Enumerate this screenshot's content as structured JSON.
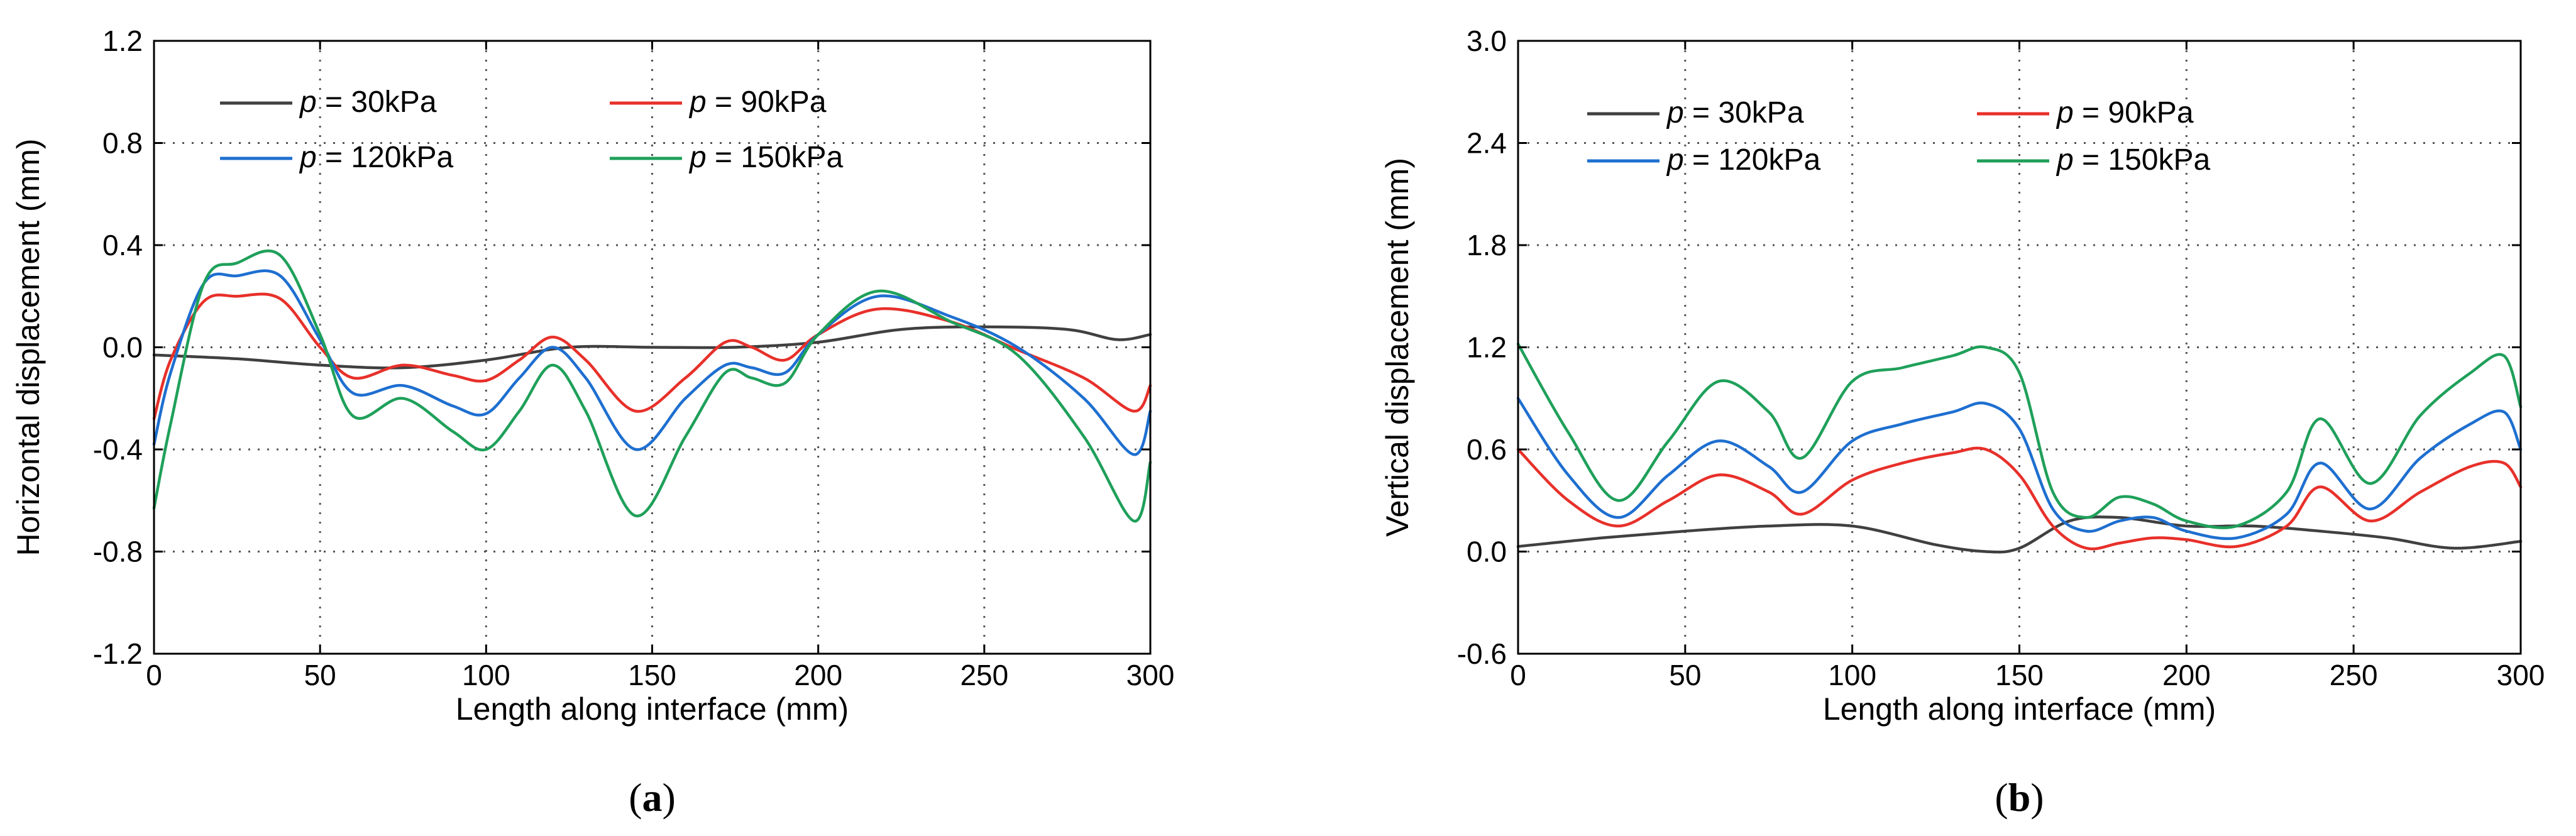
{
  "chart_data": [
    {
      "type": "line",
      "panel_label": "(a)",
      "xlabel": "Length along interface (mm)",
      "ylabel": "Horizontal  displacement (mm)",
      "xlim": [
        0,
        300
      ],
      "ylim": [
        -1.2,
        1.2
      ],
      "xticks": [
        0,
        50,
        100,
        150,
        200,
        250,
        300
      ],
      "yticks": [
        -1.2,
        -0.8,
        -0.4,
        0.0,
        0.4,
        0.8,
        1.2
      ],
      "ytick_labels": [
        "-1.2",
        "-0.8",
        "-0.4",
        "0.0",
        "0.4",
        "0.8",
        "1.2"
      ],
      "grid": true,
      "legend_position": "top-left",
      "series": [
        {
          "name": "p = 30kPa",
          "prefix": "p",
          "suffix": " = 30kPa",
          "color": "#404040",
          "x": [
            0,
            25,
            50,
            75,
            100,
            125,
            150,
            175,
            200,
            225,
            250,
            275,
            290,
            300
          ],
          "values": [
            -0.03,
            -0.045,
            -0.07,
            -0.08,
            -0.05,
            0.0,
            0.0,
            0.0,
            0.02,
            0.07,
            0.08,
            0.07,
            0.03,
            0.05
          ]
        },
        {
          "name": "p = 90kPa",
          "prefix": "p",
          "suffix": " = 90kPa",
          "color": "#e8302a",
          "x": [
            0,
            5,
            15,
            25,
            38,
            50,
            60,
            75,
            90,
            100,
            110,
            120,
            130,
            145,
            160,
            172,
            180,
            190,
            200,
            218,
            240,
            260,
            280,
            295,
            300
          ],
          "values": [
            -0.28,
            -0.05,
            0.18,
            0.2,
            0.19,
            0.0,
            -0.12,
            -0.07,
            -0.11,
            -0.13,
            -0.05,
            0.04,
            -0.05,
            -0.25,
            -0.12,
            0.02,
            0.0,
            -0.05,
            0.05,
            0.15,
            0.1,
            -0.01,
            -0.12,
            -0.25,
            -0.15
          ]
        },
        {
          "name": "p = 120kPa",
          "prefix": "p",
          "suffix": " = 120kPa",
          "color": "#1e6fd0",
          "x": [
            0,
            5,
            15,
            25,
            38,
            50,
            60,
            75,
            90,
            100,
            110,
            120,
            130,
            145,
            160,
            172,
            180,
            190,
            200,
            218,
            240,
            260,
            280,
            295,
            300
          ],
          "values": [
            -0.38,
            -0.1,
            0.25,
            0.28,
            0.28,
            0.03,
            -0.18,
            -0.15,
            -0.23,
            -0.26,
            -0.12,
            0.0,
            -0.12,
            -0.4,
            -0.2,
            -0.07,
            -0.08,
            -0.1,
            0.05,
            0.2,
            0.12,
            0.0,
            -0.2,
            -0.42,
            -0.25
          ]
        },
        {
          "name": "p = 150kPa",
          "prefix": "p",
          "suffix": " = 150kPa",
          "color": "#1fa05a",
          "x": [
            0,
            5,
            15,
            25,
            38,
            50,
            60,
            75,
            90,
            100,
            110,
            120,
            130,
            145,
            160,
            172,
            180,
            190,
            200,
            218,
            240,
            260,
            280,
            295,
            300
          ],
          "values": [
            -0.63,
            -0.3,
            0.25,
            0.33,
            0.36,
            0.05,
            -0.27,
            -0.2,
            -0.33,
            -0.4,
            -0.25,
            -0.07,
            -0.25,
            -0.66,
            -0.35,
            -0.1,
            -0.12,
            -0.14,
            0.05,
            0.22,
            0.1,
            -0.03,
            -0.35,
            -0.68,
            -0.45
          ]
        }
      ]
    },
    {
      "type": "line",
      "panel_label": "(b)",
      "xlabel": "Length along interface (mm)",
      "ylabel": "Vertical  displacement (mm)",
      "xlim": [
        0,
        300
      ],
      "ylim": [
        -0.6,
        3.0
      ],
      "xticks": [
        0,
        50,
        100,
        150,
        200,
        250,
        300
      ],
      "yticks": [
        -0.6,
        0.0,
        0.6,
        1.2,
        1.8,
        2.4,
        3.0
      ],
      "ytick_labels": [
        "-0.6",
        "0.0",
        "0.6",
        "1.2",
        "1.8",
        "2.4",
        "3.0"
      ],
      "grid": true,
      "legend_position": "top-left",
      "series": [
        {
          "name": "p = 30kPa",
          "prefix": "p",
          "suffix": " = 30kPa",
          "color": "#404040",
          "x": [
            0,
            25,
            50,
            75,
            100,
            125,
            140,
            150,
            165,
            180,
            200,
            220,
            240,
            260,
            280,
            300
          ],
          "values": [
            0.03,
            0.08,
            0.12,
            0.15,
            0.15,
            0.04,
            0.0,
            0.02,
            0.18,
            0.2,
            0.15,
            0.15,
            0.12,
            0.08,
            0.02,
            0.06
          ]
        },
        {
          "name": "p = 90kPa",
          "prefix": "p",
          "suffix": " = 90kPa",
          "color": "#e8302a",
          "x": [
            0,
            15,
            30,
            45,
            60,
            75,
            85,
            100,
            115,
            130,
            140,
            150,
            160,
            170,
            180,
            190,
            200,
            215,
            230,
            240,
            255,
            270,
            285,
            295,
            300
          ],
          "values": [
            0.6,
            0.3,
            0.15,
            0.3,
            0.45,
            0.35,
            0.22,
            0.42,
            0.52,
            0.58,
            0.6,
            0.45,
            0.15,
            0.02,
            0.05,
            0.08,
            0.07,
            0.03,
            0.15,
            0.38,
            0.18,
            0.35,
            0.5,
            0.52,
            0.38
          ]
        },
        {
          "name": "p = 120kPa",
          "prefix": "p",
          "suffix": " = 120kPa",
          "color": "#1e6fd0",
          "x": [
            0,
            15,
            30,
            45,
            60,
            75,
            85,
            100,
            115,
            130,
            140,
            150,
            160,
            170,
            180,
            190,
            200,
            215,
            230,
            240,
            255,
            270,
            285,
            295,
            300
          ],
          "values": [
            0.9,
            0.45,
            0.2,
            0.45,
            0.65,
            0.5,
            0.35,
            0.65,
            0.75,
            0.82,
            0.87,
            0.72,
            0.25,
            0.12,
            0.18,
            0.2,
            0.12,
            0.08,
            0.22,
            0.52,
            0.25,
            0.55,
            0.75,
            0.82,
            0.6
          ]
        },
        {
          "name": "p = 150kPa",
          "prefix": "p",
          "suffix": " = 150kPa",
          "color": "#1fa05a",
          "x": [
            0,
            15,
            30,
            45,
            60,
            75,
            85,
            100,
            115,
            130,
            140,
            150,
            160,
            170,
            180,
            190,
            200,
            215,
            230,
            240,
            255,
            270,
            285,
            295,
            300
          ],
          "values": [
            1.22,
            0.7,
            0.3,
            0.65,
            1.0,
            0.82,
            0.55,
            1.0,
            1.08,
            1.15,
            1.2,
            1.05,
            0.35,
            0.2,
            0.32,
            0.28,
            0.18,
            0.15,
            0.35,
            0.78,
            0.4,
            0.8,
            1.05,
            1.15,
            0.85
          ]
        }
      ]
    }
  ]
}
